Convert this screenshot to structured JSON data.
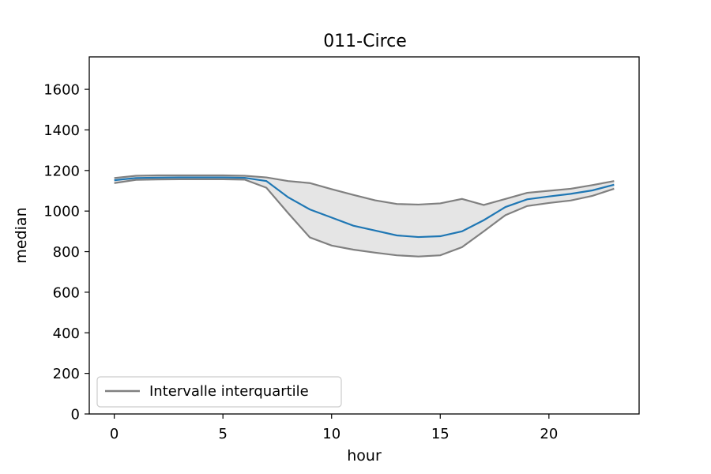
{
  "chart_data": {
    "type": "line",
    "title": "011-Circe",
    "xlabel": "hour",
    "ylabel": "median",
    "xlim": [
      -1.15,
      24.15
    ],
    "ylim": [
      0,
      1760
    ],
    "xticks": [
      0,
      5,
      10,
      15,
      20
    ],
    "yticks": [
      0,
      200,
      400,
      600,
      800,
      1000,
      1200,
      1400,
      1600
    ],
    "grid": false,
    "legend_position": "bottom-left",
    "x": [
      0,
      1,
      2,
      3,
      4,
      5,
      6,
      7,
      8,
      9,
      10,
      11,
      12,
      13,
      14,
      15,
      16,
      17,
      18,
      19,
      20,
      21,
      22,
      23
    ],
    "series": [
      {
        "role": "median",
        "color": "#1f77b4",
        "values": [
          1152,
          1163,
          1165,
          1166,
          1166,
          1166,
          1164,
          1148,
          1068,
          1008,
          968,
          928,
          904,
          880,
          872,
          876,
          900,
          955,
          1020,
          1058,
          1072,
          1085,
          1102,
          1130
        ]
      },
      {
        "role": "q3",
        "color": "#808080",
        "values": [
          1163,
          1174,
          1176,
          1176,
          1176,
          1176,
          1174,
          1166,
          1148,
          1138,
          1108,
          1080,
          1053,
          1035,
          1032,
          1038,
          1060,
          1030,
          1060,
          1090,
          1100,
          1110,
          1128,
          1148
        ]
      },
      {
        "role": "q1",
        "color": "#808080",
        "values": [
          1138,
          1154,
          1156,
          1157,
          1157,
          1157,
          1155,
          1115,
          990,
          870,
          830,
          810,
          795,
          782,
          776,
          782,
          822,
          900,
          980,
          1025,
          1040,
          1052,
          1075,
          1110
        ]
      }
    ],
    "band_fill": "#e5e5e5",
    "legend": [
      {
        "label": "Intervalle interquartile",
        "color": "#808080"
      }
    ]
  }
}
